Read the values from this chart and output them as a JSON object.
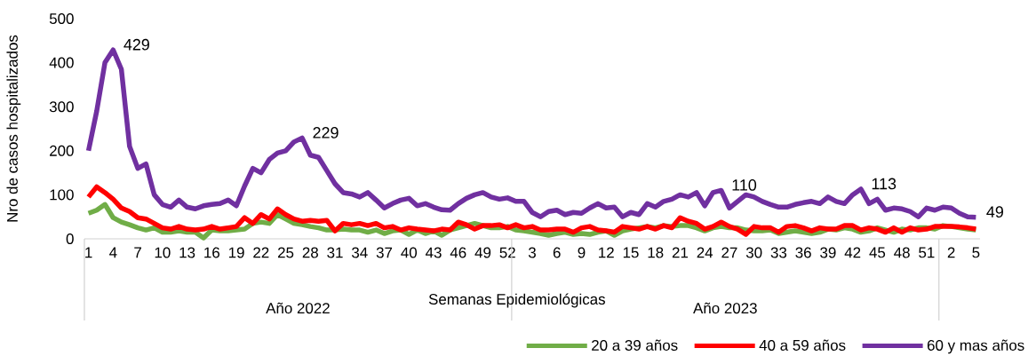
{
  "chart_data": {
    "type": "line",
    "xlabel": "Semanas Epidemiológicas",
    "ylabel": "Nro de casos hospitalizados",
    "annotations": [
      "Año 2022",
      "Año 2023"
    ],
    "categories": [
      "1",
      null,
      null,
      "4",
      null,
      null,
      "7",
      null,
      null,
      "10",
      null,
      null,
      "13",
      null,
      null,
      "16",
      null,
      null,
      "19",
      null,
      null,
      "22",
      null,
      null,
      "25",
      null,
      null,
      "28",
      null,
      null,
      "31",
      null,
      null,
      "34",
      null,
      null,
      "37",
      null,
      null,
      "40",
      null,
      null,
      "43",
      null,
      null,
      "46",
      null,
      null,
      "49",
      null,
      null,
      "52",
      null,
      null,
      "3",
      null,
      null,
      "6",
      null,
      null,
      "9",
      null,
      null,
      "12",
      null,
      null,
      "15",
      null,
      null,
      "18",
      null,
      null,
      "21",
      null,
      null,
      "24",
      null,
      null,
      "27",
      null,
      null,
      "30",
      null,
      null,
      "33",
      null,
      null,
      "36",
      null,
      null,
      "39",
      null,
      null,
      "42",
      null,
      null,
      "45",
      null,
      null,
      "48",
      null,
      null,
      "51",
      null,
      null,
      "2",
      null,
      null,
      "5"
    ],
    "ylim": [
      0,
      500
    ],
    "yticks": [
      0,
      100,
      200,
      300,
      400,
      500
    ],
    "grid": false,
    "legend": "bottom right",
    "marker": "none",
    "line_style": "solid",
    "series": [
      {
        "name": "20 a 39 años",
        "color": "#70ad47",
        "values": [
          58,
          65,
          78,
          48,
          38,
          32,
          25,
          20,
          25,
          15,
          15,
          18,
          15,
          15,
          2,
          20,
          18,
          18,
          20,
          22,
          35,
          38,
          35,
          55,
          45,
          35,
          32,
          28,
          25,
          20,
          20,
          22,
          20,
          20,
          15,
          20,
          12,
          18,
          20,
          10,
          20,
          12,
          18,
          8,
          20,
          25,
          30,
          35,
          30,
          25,
          25,
          28,
          20,
          18,
          15,
          12,
          8,
          12,
          15,
          10,
          12,
          10,
          15,
          18,
          8,
          18,
          22,
          25,
          28,
          25,
          30,
          28,
          30,
          30,
          25,
          18,
          25,
          28,
          25,
          25,
          20,
          18,
          18,
          20,
          12,
          15,
          18,
          15,
          12,
          15,
          22,
          20,
          25,
          22,
          15,
          18,
          25,
          20,
          15,
          22,
          20,
          25,
          25,
          22,
          30,
          28,
          25,
          22,
          20
        ]
      },
      {
        "name": "40 a 59 años",
        "color": "#ff0000",
        "values": [
          95,
          118,
          105,
          90,
          70,
          62,
          48,
          45,
          35,
          25,
          22,
          28,
          22,
          20,
          22,
          28,
          22,
          25,
          28,
          48,
          35,
          55,
          45,
          68,
          55,
          45,
          40,
          42,
          40,
          42,
          18,
          35,
          32,
          35,
          30,
          35,
          25,
          28,
          20,
          25,
          22,
          20,
          18,
          22,
          20,
          38,
          32,
          22,
          30,
          30,
          32,
          25,
          32,
          25,
          28,
          20,
          20,
          22,
          22,
          15,
          25,
          28,
          20,
          18,
          15,
          28,
          25,
          22,
          28,
          22,
          30,
          25,
          48,
          40,
          35,
          22,
          28,
          38,
          28,
          22,
          10,
          28,
          25,
          25,
          15,
          28,
          30,
          25,
          18,
          25,
          22,
          22,
          30,
          30,
          20,
          25,
          22,
          15,
          25,
          15,
          25,
          20,
          22,
          28,
          28,
          28,
          27,
          25,
          22
        ]
      },
      {
        "name": "60 y mas años",
        "color": "#7030a0",
        "values": [
          200,
          290,
          400,
          429,
          385,
          210,
          160,
          170,
          100,
          78,
          72,
          88,
          72,
          68,
          75,
          78,
          80,
          88,
          75,
          120,
          160,
          150,
          180,
          195,
          200,
          220,
          229,
          190,
          185,
          155,
          125,
          105,
          102,
          95,
          105,
          88,
          70,
          80,
          88,
          92,
          75,
          80,
          72,
          66,
          65,
          80,
          92,
          100,
          105,
          95,
          90,
          93,
          85,
          85,
          60,
          50,
          62,
          65,
          55,
          60,
          58,
          70,
          80,
          70,
          72,
          50,
          60,
          55,
          80,
          72,
          85,
          90,
          100,
          95,
          105,
          75,
          105,
          110,
          70,
          85,
          100,
          95,
          85,
          78,
          72,
          72,
          78,
          82,
          85,
          80,
          95,
          85,
          80,
          100,
          113,
          80,
          90,
          65,
          70,
          68,
          62,
          50,
          70,
          65,
          72,
          70,
          58,
          50,
          49
        ],
        "value_labels": [
          null,
          null,
          null,
          "429",
          null,
          null,
          null,
          null,
          null,
          null,
          null,
          null,
          null,
          null,
          null,
          null,
          null,
          null,
          null,
          null,
          null,
          null,
          null,
          null,
          null,
          null,
          "229",
          null,
          null,
          null,
          null,
          null,
          null,
          null,
          null,
          null,
          null,
          null,
          null,
          null,
          null,
          null,
          null,
          null,
          null,
          null,
          null,
          null,
          null,
          null,
          null,
          null,
          null,
          null,
          null,
          null,
          null,
          null,
          null,
          null,
          null,
          null,
          null,
          null,
          null,
          null,
          null,
          null,
          null,
          null,
          null,
          null,
          null,
          null,
          null,
          null,
          null,
          "110",
          null,
          null,
          null,
          null,
          null,
          null,
          null,
          null,
          null,
          null,
          null,
          null,
          null,
          null,
          null,
          null,
          "113",
          null,
          null,
          null,
          null,
          null,
          null,
          null,
          null,
          null,
          null,
          null,
          null,
          null,
          "49"
        ]
      }
    ]
  }
}
